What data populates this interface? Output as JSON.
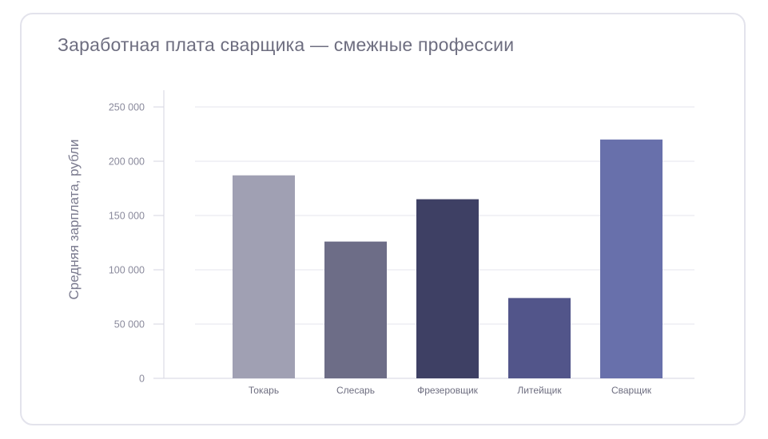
{
  "chart_data": {
    "type": "bar",
    "title": "Заработная плата сварщика — смежные профессии",
    "ylabel": "Средняя зарплата, рубли",
    "xlabel": "",
    "categories": [
      "Токарь",
      "Слесарь",
      "Фрезеровщик",
      "Литейщик",
      "Сварщик"
    ],
    "values": [
      187000,
      126000,
      165000,
      74000,
      220000
    ],
    "colors": [
      "#a0a0b3",
      "#6d6d87",
      "#3e4064",
      "#52558a",
      "#6870ab"
    ],
    "ylim": [
      0,
      250000
    ],
    "yticks": [
      0,
      50000,
      100000,
      150000,
      200000,
      250000
    ],
    "ytick_labels": [
      "0",
      "50 000",
      "100 000",
      "150 000",
      "200 000",
      "250 000"
    ],
    "grid": true,
    "legend": false
  }
}
